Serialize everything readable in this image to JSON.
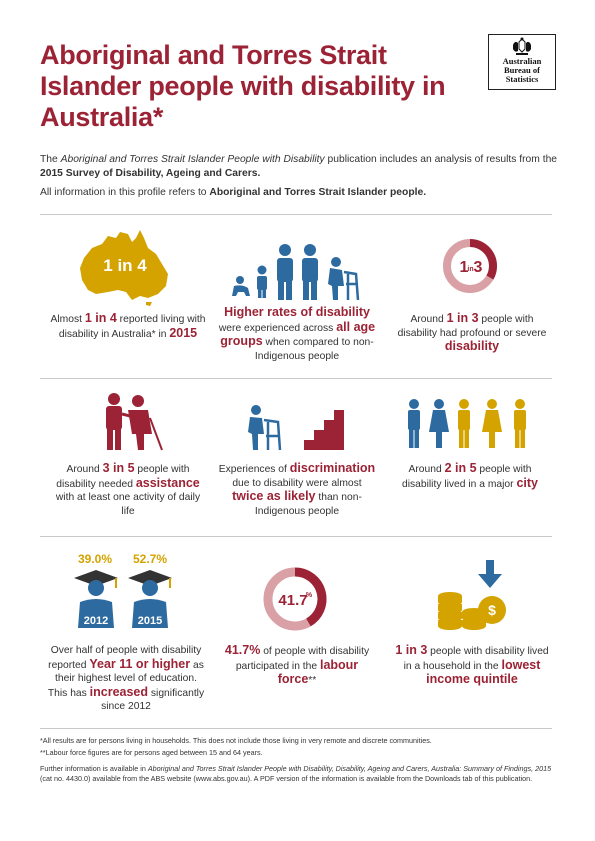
{
  "title": "Aboriginal and Torres Strait Islander people with disability in Australia*",
  "logo": {
    "line1": "Australian",
    "line2": "Bureau of",
    "line3": "Statistics"
  },
  "intro": {
    "p1_a": "The ",
    "p1_b": "Aboriginal and Torres Strait Islander People with Disability",
    "p1_c": " publication includes an analysis of results from the ",
    "p1_d": "2015 Survey of Disability, Ageing and Carers.",
    "p2_a": "All information in this profile refers to ",
    "p2_b": "Aboriginal and Torres Strait Islander people."
  },
  "stats": {
    "map_label": "1 in 4",
    "c1": {
      "a": "Almost ",
      "b": "1 in 4",
      "c": " reported living with disability in Australia* in ",
      "d": "2015"
    },
    "c2": {
      "a": "Higher rates of disability",
      "b": " were experienced across ",
      "c": "all age groups",
      "d": " when compared to non-Indigenous people"
    },
    "ring1_big": "1",
    "ring1_small": "in",
    "ring1_big2": "3",
    "c3": {
      "a": "Around ",
      "b": "1 in 3",
      "c": " people with disability had profound or severe ",
      "d": "disability"
    },
    "c4": {
      "a": "Around ",
      "b": "3 in 5",
      "c": " people with disability needed ",
      "d": "assistance",
      "e": " with at least one activity of daily life"
    },
    "c5": {
      "a": "Experiences of ",
      "b": "discrimination",
      "c": " due to disability were almost ",
      "d": "twice as likely",
      "e": " than non-Indigenous people"
    },
    "c6": {
      "a": "Around ",
      "b": "2 in 5",
      "c": " people with disability lived in a major ",
      "d": "city"
    },
    "edu": {
      "pct1": "39.0%",
      "pct2": "52.7%",
      "year1": "2012",
      "year2": "2015"
    },
    "c7": {
      "a": "Over half of people with disability reported ",
      "b": "Year 11 or higher",
      "c": " as their highest level of education. This has ",
      "d": "increased",
      "e": " significantly since 2012"
    },
    "ring2_label": "41.7",
    "ring2_sup": "%",
    "c8": {
      "a": "41.7%",
      "b": " of people with disability participated in the ",
      "c": "labour force",
      "d": "**"
    },
    "c9": {
      "a": "1 in 3",
      "b": " people with disability lived in a household in the ",
      "c": "lowest income quintile"
    }
  },
  "footnotes": {
    "f1": "*All results are for persons living in households. This does not include those living in very remote and discrete communities.",
    "f2": "**Labour force figures are for persons aged between 15 and 64 years.",
    "f3_a": "Further information is available in ",
    "f3_b": "Aboriginal and Torres Strait Islander People with Disability, Disability, Ageing and Carers, Australia: Summary of Findings, 2015",
    "f3_c": " (cat no. 4430.0) available from the ABS website (www.abs.gov.au). A PDF version of the information is available from the Downloads tab of this publication."
  },
  "colors": {
    "maroon": "#9b2335",
    "gold": "#d4a300",
    "blue": "#2d6a9f",
    "pink": "#d9a0a6",
    "grey": "#333333"
  },
  "ring1_fraction": 0.333,
  "ring2_fraction": 0.417
}
